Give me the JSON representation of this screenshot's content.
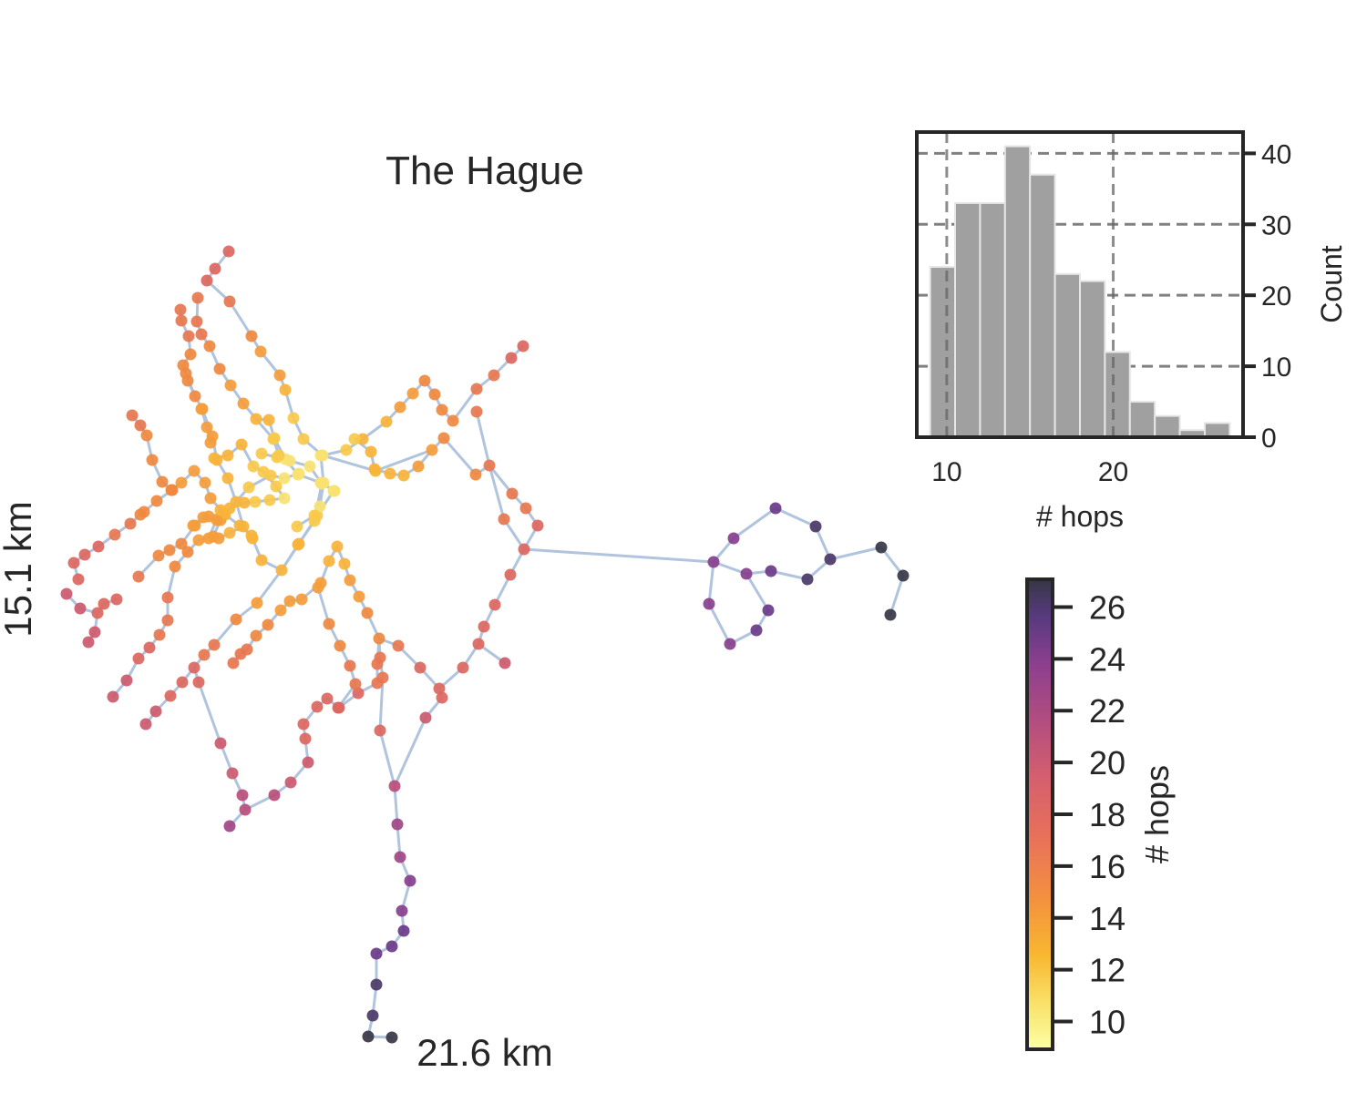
{
  "chart_data": {
    "type": "composite",
    "network": {
      "title": "The Hague",
      "width_label": "21.6 km",
      "height_label": "15.1 km",
      "edge_color": "#b0c4de",
      "node_color_variable": "# hops"
    },
    "histogram": {
      "type": "bar",
      "xlabel": "# hops",
      "ylabel": "Count",
      "bin_edges": [
        9,
        10.5,
        12,
        13.5,
        15,
        16.5,
        18,
        19.5,
        21,
        22.5,
        24,
        25.5,
        27
      ],
      "counts": [
        24,
        33,
        33,
        41,
        37,
        23,
        22,
        12,
        5,
        3,
        1,
        2
      ],
      "xticks": [
        10,
        20
      ],
      "yticks": [
        0,
        10,
        20,
        30,
        40
      ],
      "xlim": [
        8.2,
        27.8
      ],
      "ylim": [
        0,
        43
      ],
      "vlines": [
        10,
        20
      ],
      "grid": true,
      "bar_color": "#a0a0a0"
    },
    "colorbar": {
      "label": "# hops",
      "range": [
        9,
        27
      ],
      "ticks": [
        10,
        12,
        14,
        16,
        18,
        20,
        22,
        24,
        26
      ],
      "colormap": "inferno_r"
    }
  }
}
